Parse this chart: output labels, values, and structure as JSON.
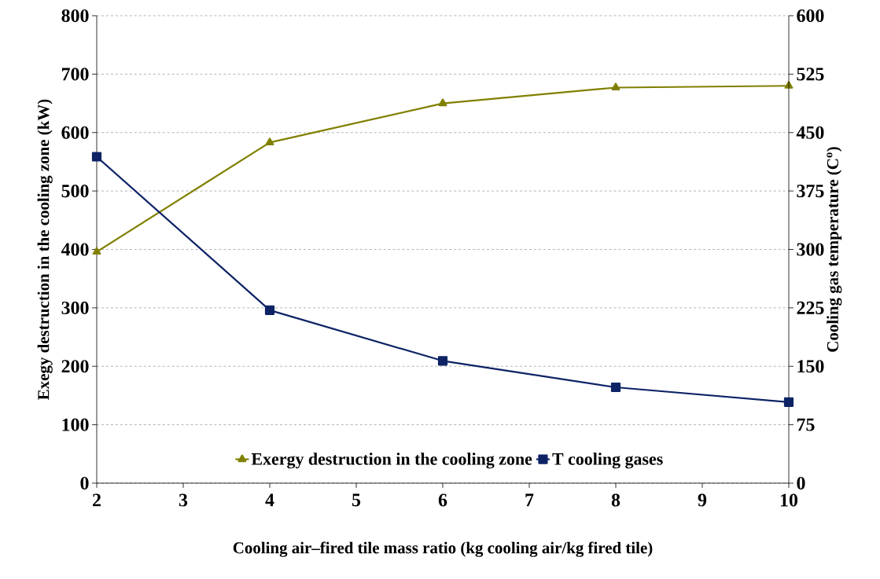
{
  "chart_data": {
    "type": "line",
    "xlabel": "Cooling air–fired tile mass ratio (kg cooling air/kg fired tile)",
    "ylabel": "Exegy destruction in the cooling zone (kW)",
    "y2label": "Cooling gas temperature (C$^{o}$)",
    "x": [
      2,
      4,
      6,
      8,
      10
    ],
    "series": [
      {
        "name": "Exergy destruction in the cooling zone",
        "color": "#808000",
        "values": [
          396,
          583,
          650,
          677,
          680
        ],
        "marker": "triangle"
      },
      {
        "name": "T cooling gases",
        "color": "#0d2366",
        "values": [
          419,
          222,
          157,
          123,
          104
        ],
        "marker": "square",
        "axis": "y2"
      }
    ],
    "xlim": [
      2,
      10
    ],
    "xticks": [
      2,
      3,
      4,
      5,
      6,
      7,
      8,
      9,
      10
    ],
    "ylim": [
      0,
      800
    ],
    "yticks": [
      0,
      100,
      200,
      300,
      400,
      500,
      600,
      700,
      800
    ],
    "y2lim": [
      0,
      600
    ],
    "y2ticks": [
      0,
      75,
      150,
      225,
      300,
      375,
      450,
      525,
      600
    ],
    "grid": "y",
    "legend": "bottom",
    "line_style": "solid"
  }
}
